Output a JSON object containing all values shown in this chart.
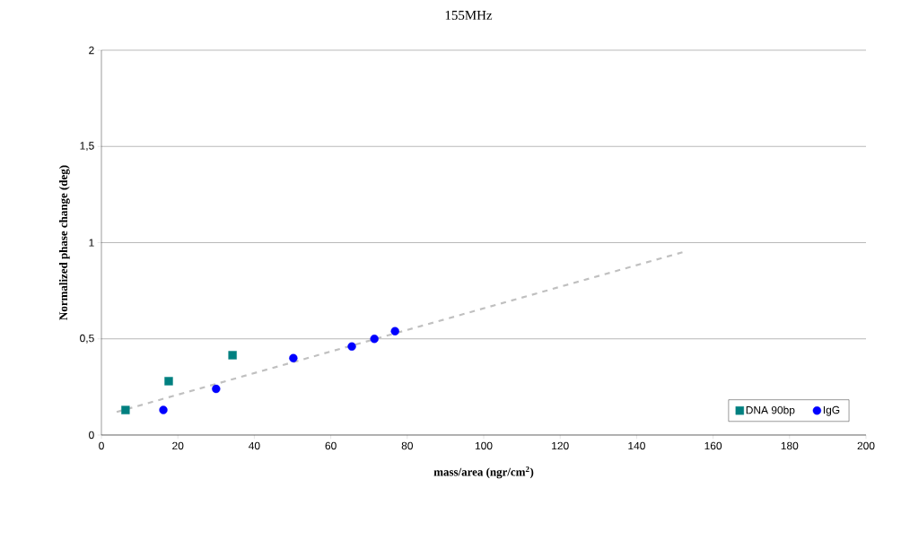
{
  "chart_data": {
    "type": "scatter",
    "title": "155MHz",
    "xlabel": "mass/area (ngr/cm$^{2}$)",
    "ylabel": "Normalized phase change (deg)",
    "xlim": [
      0,
      200
    ],
    "xticks": [
      0,
      20,
      40,
      60,
      80,
      100,
      120,
      140,
      160,
      180,
      200
    ],
    "ylim": [
      0,
      2
    ],
    "yticks": [
      {
        "value": 0,
        "label": "0"
      },
      {
        "value": 0.5,
        "label": "0,5"
      },
      {
        "value": 1,
        "label": "1"
      },
      {
        "value": 1.5,
        "label": "1,5"
      },
      {
        "value": 2,
        "label": "2"
      }
    ],
    "grid": "y",
    "legend": "bottom right",
    "series": [
      {
        "name": "DNA 90bp",
        "color": "#008080",
        "marker": "square",
        "x": [
          6.3,
          17.6,
          34.3
        ],
        "values": [
          0.13,
          0.28,
          0.415
        ]
      },
      {
        "name": "IgG",
        "color": "#0000ff",
        "marker": "circle",
        "x": [
          16.2,
          30,
          50.2,
          65.5,
          71.4,
          76.8
        ],
        "values": [
          0.13,
          0.24,
          0.4,
          0.46,
          0.5,
          0.54
        ]
      },
      {
        "type": "line",
        "color": "#c0c0c0",
        "line_style": "dashed",
        "marker": "none",
        "x": [
          4,
          152
        ],
        "values": [
          0.12,
          0.95
        ]
      }
    ]
  }
}
